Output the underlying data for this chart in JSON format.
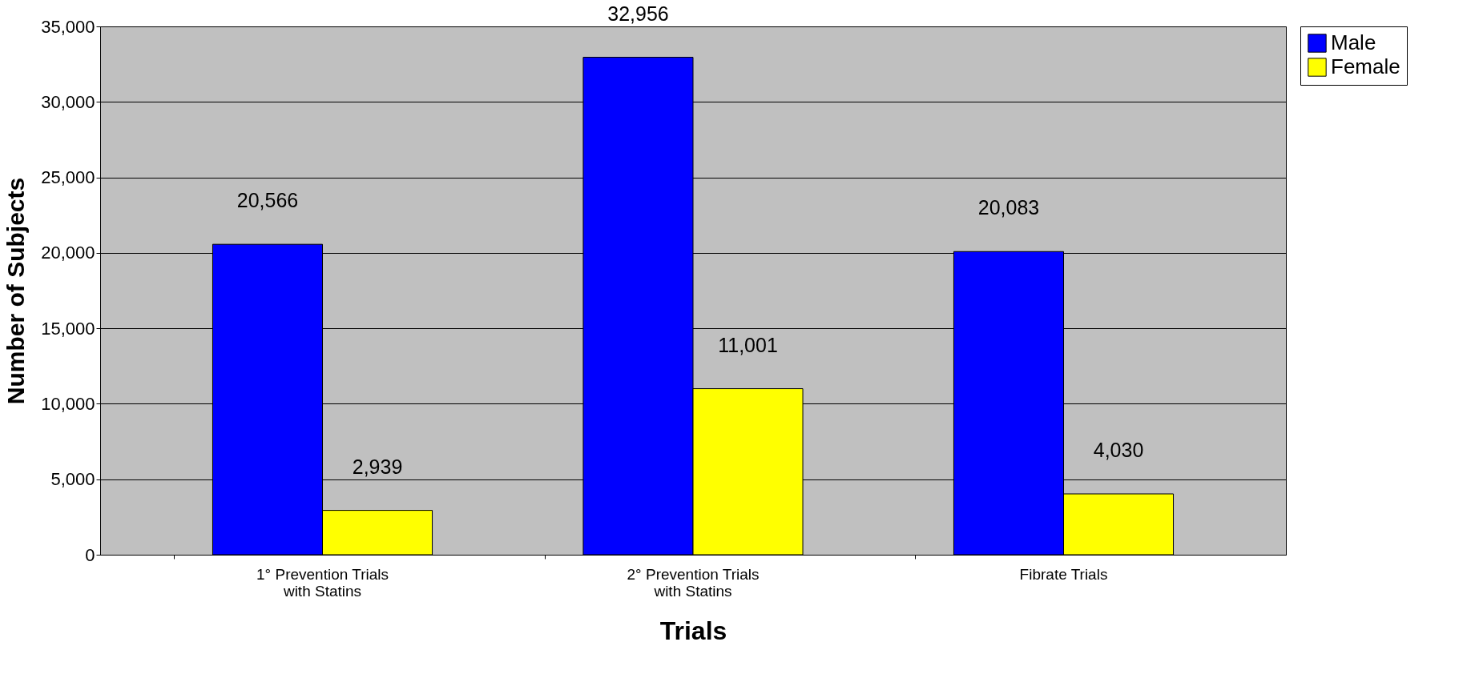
{
  "chart_data": {
    "type": "bar",
    "xlabel": "Trials",
    "ylabel": "Number of Subjects",
    "categories": [
      "1° Prevention Trials\nwith Statins",
      null,
      "2° Prevention Trials\nwith Statins",
      null,
      "Fibrate Trials",
      null
    ],
    "series": [
      {
        "name": "Male",
        "color": "#0000ff",
        "values": [
          20566,
          null,
          32956,
          null,
          20083,
          null
        ],
        "value_labels": [
          "20,566",
          null,
          "32,956",
          null,
          "20,083",
          null
        ]
      },
      {
        "name": "Female",
        "color": "#ffff00",
        "values": [
          2939,
          null,
          11001,
          null,
          4030,
          null
        ],
        "value_labels": [
          "2,939",
          null,
          "11,001",
          null,
          "4,030",
          null
        ]
      }
    ],
    "ylim": [
      0,
      35000
    ],
    "yticks": [
      {
        "value": 0,
        "label": "0"
      },
      {
        "value": 5000,
        "label": "5,000"
      },
      {
        "value": 10000,
        "label": "10,000"
      },
      {
        "value": 15000,
        "label": "15,000"
      },
      {
        "value": 20000,
        "label": "20,000"
      },
      {
        "value": 25000,
        "label": "25,000"
      },
      {
        "value": 30000,
        "label": "30,000"
      },
      {
        "value": 35000,
        "label": "35,000"
      }
    ],
    "grid": "y",
    "legend": "right"
  }
}
